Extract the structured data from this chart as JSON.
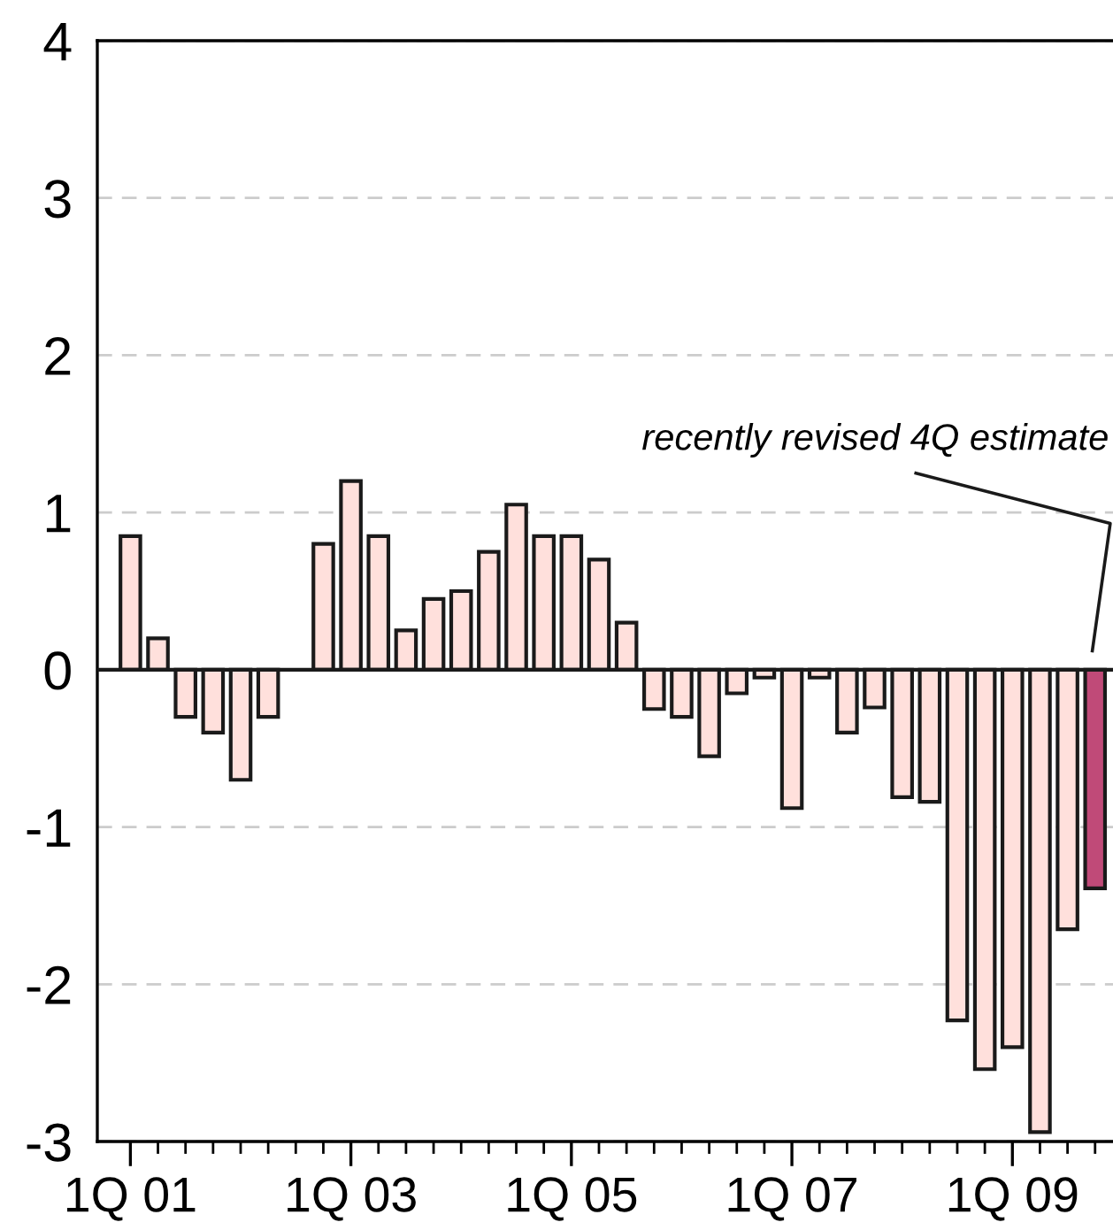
{
  "chart_data": {
    "type": "bar",
    "categories": [
      "1Q 01",
      null,
      null,
      null,
      null,
      null,
      null,
      null,
      "1Q 03",
      null,
      null,
      null,
      null,
      null,
      null,
      null,
      "1Q 05",
      null,
      null,
      null,
      null,
      null,
      null,
      null,
      "1Q 07",
      null,
      null,
      null,
      null,
      null,
      null,
      null,
      "1Q 09",
      null,
      null,
      null
    ],
    "values": [
      0.85,
      0.2,
      -0.3,
      -0.4,
      -0.7,
      -0.3,
      null,
      0.8,
      1.2,
      0.85,
      0.25,
      0.45,
      0.5,
      0.75,
      1.05,
      0.85,
      0.85,
      0.7,
      0.3,
      -0.25,
      -0.3,
      -0.55,
      -0.15,
      -0.05,
      -0.88,
      -0.05,
      -0.4,
      -0.24,
      -0.81,
      -0.84,
      -2.23,
      -2.54,
      -2.4,
      -2.94,
      -1.65,
      -1.39
    ],
    "colors": [
      "#ffe0dc",
      "#ffe0dc",
      "#ffe0dc",
      "#ffe0dc",
      "#ffe0dc",
      "#ffe0dc",
      "#ffe0dc",
      "#ffe0dc",
      "#ffe0dc",
      "#ffe0dc",
      "#ffe0dc",
      "#ffe0dc",
      "#ffe0dc",
      "#ffe0dc",
      "#ffe0dc",
      "#ffe0dc",
      "#ffe0dc",
      "#ffe0dc",
      "#ffe0dc",
      "#ffe0dc",
      "#ffe0dc",
      "#ffe0dc",
      "#ffe0dc",
      "#ffe0dc",
      "#ffe0dc",
      "#ffe0dc",
      "#ffe0dc",
      "#ffe0dc",
      "#ffe0dc",
      "#ffe0dc",
      "#ffe0dc",
      "#ffe0dc",
      "#ffe0dc",
      "#ffe0dc",
      "#ffe0dc",
      "#c04a78"
    ],
    "ylim": [
      -3,
      4
    ],
    "yticks": [
      -3,
      -2,
      -1,
      0,
      1,
      2,
      3,
      4
    ],
    "grid": "y",
    "ref_lines": [
      {
        "axis": "y",
        "value": 0
      }
    ],
    "annotations": [
      "recently revised 4Q estimate"
    ]
  }
}
